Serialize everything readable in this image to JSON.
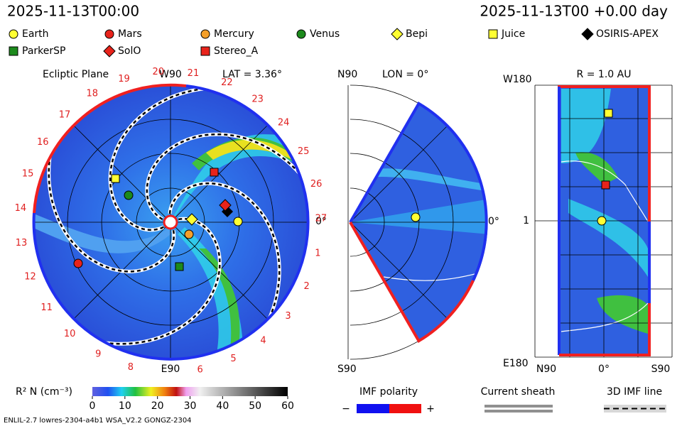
{
  "header": {
    "left": "2025-11-13T00:00",
    "right": "2025-11-13T00 +0.00 day"
  },
  "legend": [
    {
      "name": "Earth",
      "shape": "circle",
      "color": "#ffff33"
    },
    {
      "name": "Mars",
      "shape": "circle",
      "color": "#e8231b"
    },
    {
      "name": "Mercury",
      "shape": "circle",
      "color": "#f5a02a"
    },
    {
      "name": "Venus",
      "shape": "circle",
      "color": "#1c8a1c"
    },
    {
      "name": "Bepi",
      "shape": "diamond",
      "color": "#ffff33"
    },
    {
      "name": "Juice",
      "shape": "square",
      "color": "#ffff33"
    },
    {
      "name": "OSIRIS-APEX",
      "shape": "diamond",
      "color": "#000000"
    },
    {
      "name": "ParkerSP",
      "shape": "square",
      "color": "#1c8a1c"
    },
    {
      "name": "SolO",
      "shape": "diamond",
      "color": "#e8231b"
    },
    {
      "name": "Stereo_A",
      "shape": "square",
      "color": "#e8231b"
    }
  ],
  "ecliptic": {
    "title": "Ecliptic Plane",
    "top": "W90",
    "lat": "LAT = 3.36°",
    "bottom": "E90",
    "right": "0°",
    "sectors": [
      1,
      2,
      3,
      4,
      5,
      6,
      8,
      9,
      10,
      11,
      12,
      13,
      14,
      15,
      16,
      17,
      18,
      19,
      20,
      21,
      22,
      23,
      24,
      25,
      26,
      27
    ]
  },
  "meridional": {
    "top": "N90",
    "lon": "LON = 0°",
    "bottom": "S90",
    "right": "0°"
  },
  "radial": {
    "title": "R = 1.0 AU",
    "top": "W180",
    "bottom": "E180",
    "middle": "1",
    "x_left": "N90",
    "x_mid": "0°",
    "x_right": "S90"
  },
  "colorbar": {
    "label": "R² N (cm⁻³)",
    "range": [
      0,
      60
    ],
    "ticks": [
      0,
      10,
      20,
      30,
      40,
      50,
      60
    ]
  },
  "imf": {
    "title": "IMF polarity",
    "minus": "−",
    "plus": "+"
  },
  "sheath": "Current sheath",
  "imf_line": "3D IMF line",
  "footer": "ENLIL-2.7 lowres-2304-a4b1 WSA_V2.2 GONGZ-2304"
}
